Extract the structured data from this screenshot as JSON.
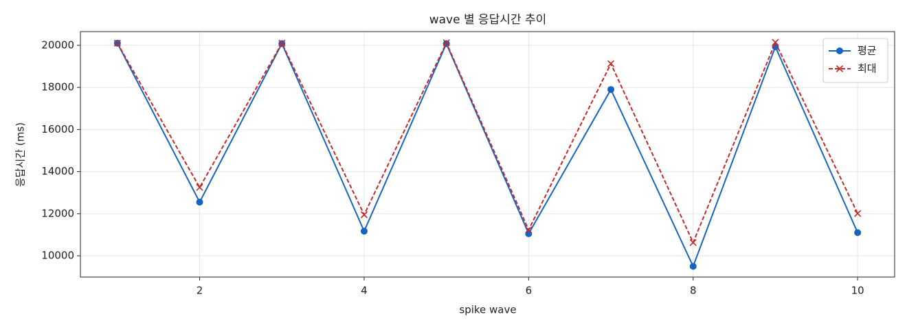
{
  "chart_data": {
    "type": "line",
    "title": "wave 별 응답시간 추이",
    "x_label": "spike wave",
    "y_label": "응답시간 (ms)",
    "x": [
      1,
      2,
      3,
      4,
      5,
      6,
      7,
      8,
      9,
      10
    ],
    "series": [
      {
        "name": "평균",
        "color": "#1565c0",
        "marker": "o",
        "linestyle": "solid",
        "values": [
          20100,
          12550,
          20080,
          11170,
          20080,
          11050,
          17900,
          9500,
          19930,
          11100
        ]
      },
      {
        "name": "최대",
        "color": "#c62828",
        "marker": "x",
        "linestyle": "dashed",
        "values": [
          20100,
          13250,
          20100,
          11950,
          20120,
          11230,
          19130,
          10630,
          20140,
          12010
        ]
      }
    ],
    "xlim": [
      0.55,
      10.45
    ],
    "xticks": [
      2,
      4,
      6,
      8,
      10
    ],
    "ylim": [
      8990,
      20650
    ],
    "yticks": [
      10000,
      12000,
      14000,
      16000,
      18000,
      20000
    ],
    "grid": true,
    "legend": "upper right"
  }
}
